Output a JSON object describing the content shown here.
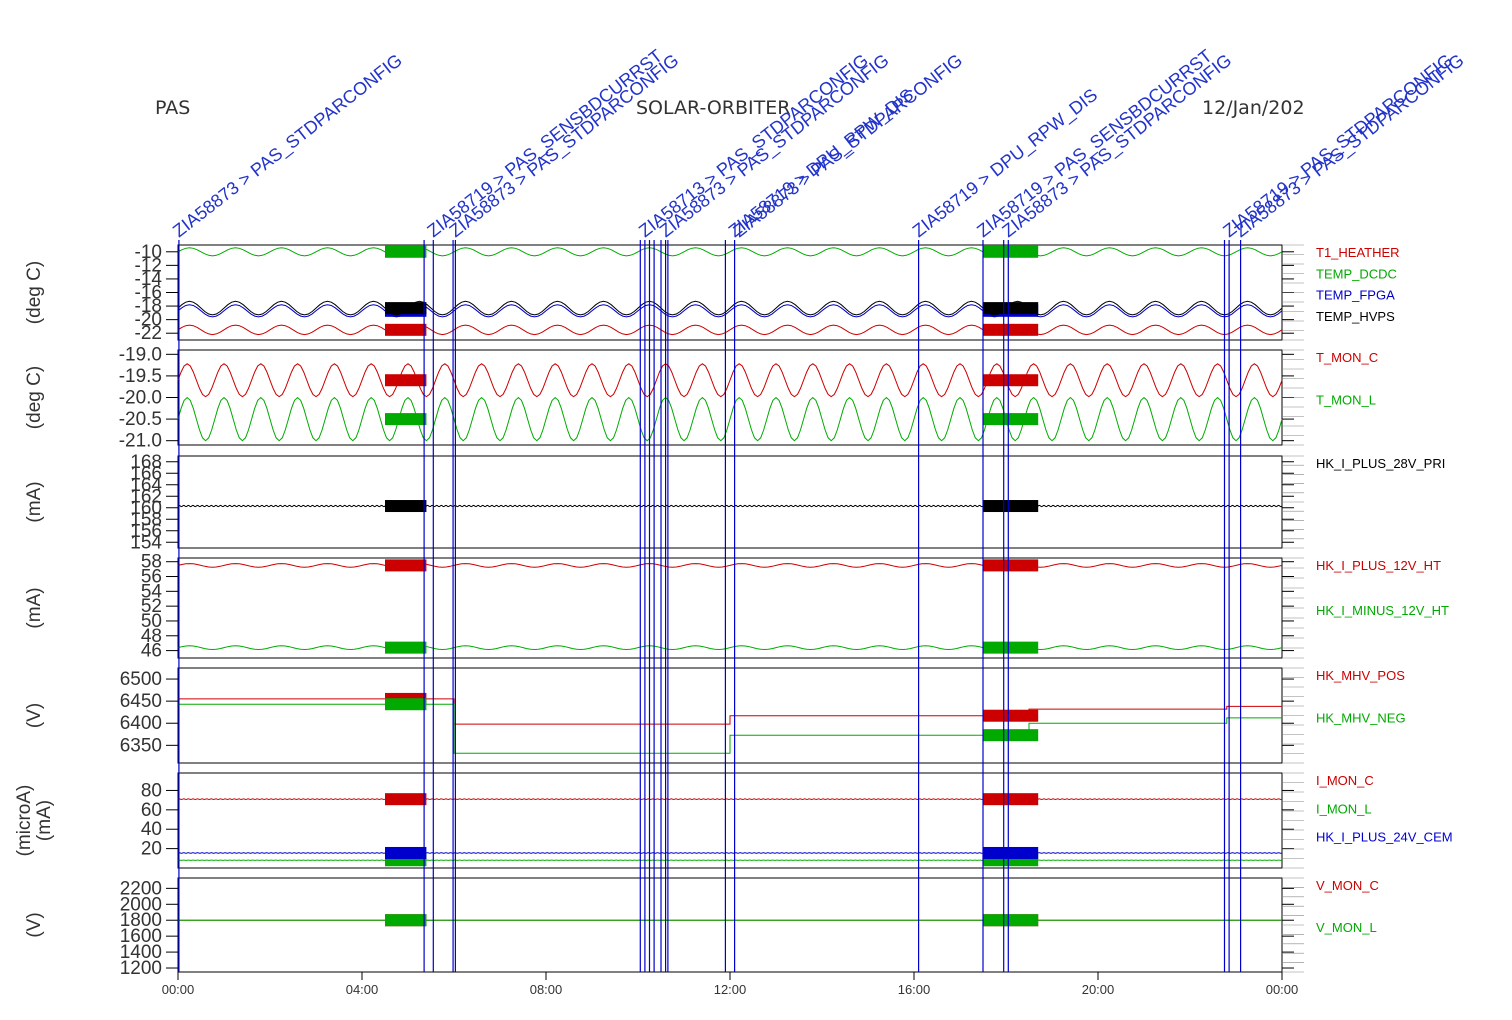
{
  "header": {
    "instrument": "PAS",
    "mission": "SOLAR-ORBITER",
    "date": "12/Jan/202"
  },
  "chart_data": [
    {
      "type": "line",
      "panel": "temperatures",
      "ylabel": "(deg C)",
      "yticks": [
        -10,
        -12,
        -14,
        -16,
        -18,
        -20,
        -22
      ],
      "ylim": [
        -23,
        -9
      ],
      "series": [
        {
          "name": "T1_HEATHER",
          "color": "#cc0000",
          "base": -21.5,
          "amp": 0.7,
          "period": 1
        },
        {
          "name": "TEMP_DCDC",
          "color": "#00aa00",
          "base": -10,
          "amp": 0.6,
          "period": 1
        },
        {
          "name": "TEMP_FPGA",
          "color": "#0000cc",
          "base": -18.7,
          "amp": 0.9,
          "period": 1
        },
        {
          "name": "TEMP_HVPS",
          "color": "#000000",
          "base": -18.3,
          "amp": 1.0,
          "period": 1
        }
      ]
    },
    {
      "type": "line",
      "panel": "monitor temperatures",
      "ylabel": "(deg C)",
      "yticks": [
        "-19.0",
        "-19.5",
        "-20.0",
        "-20.5",
        "-21.0"
      ],
      "ylim": [
        -21.1,
        -18.9
      ],
      "series": [
        {
          "name": "T_MON_C",
          "color": "#cc0000",
          "base": -19.6,
          "amp": 0.38,
          "period": 0.8
        },
        {
          "name": "T_MON_L",
          "color": "#00aa00",
          "base": -20.5,
          "amp": 0.5,
          "period": 0.8
        }
      ]
    },
    {
      "type": "line",
      "panel": "28V primary current",
      "ylabel": "(mA)",
      "yticks": [
        168,
        166,
        164,
        162,
        160,
        158,
        156,
        154
      ],
      "ylim": [
        153,
        169
      ],
      "series": [
        {
          "name": "HK_I_PLUS_28V_PRI",
          "color": "#000000",
          "base": 160.3,
          "amp": 0.1,
          "period": 0.1
        }
      ]
    },
    {
      "type": "line",
      "panel": "12V currents",
      "ylabel": "(mA)",
      "yticks": [
        58,
        56,
        54,
        52,
        50,
        48,
        46
      ],
      "ylim": [
        45,
        58.5
      ],
      "series": [
        {
          "name": "HK_I_PLUS_12V_HT",
          "color": "#cc0000",
          "base": 57.5,
          "amp": 0.25,
          "period": 1
        },
        {
          "name": "HK_I_MINUS_12V_HT",
          "color": "#00aa00",
          "base": 46.4,
          "amp": 0.25,
          "period": 1
        }
      ]
    },
    {
      "type": "line",
      "panel": "MHV",
      "ylabel": "(V)",
      "yticks": [
        6500,
        6450,
        6400,
        6350
      ],
      "ylim": [
        6310,
        6525
      ],
      "series": [
        {
          "name": "HK_MHV_POS",
          "color": "#cc0000",
          "steps": [
            [
              0,
              6455
            ],
            [
              6,
              6455
            ],
            [
              6,
              6398
            ],
            [
              12,
              6398
            ],
            [
              12,
              6417
            ],
            [
              18.5,
              6417
            ],
            [
              18.5,
              6432
            ],
            [
              22.8,
              6432
            ],
            [
              22.8,
              6438
            ],
            [
              24,
              6438
            ]
          ]
        },
        {
          "name": "HK_MHV_NEG",
          "color": "#00aa00",
          "steps": [
            [
              0,
              6443
            ],
            [
              6,
              6443
            ],
            [
              6,
              6332
            ],
            [
              12,
              6332
            ],
            [
              12,
              6373
            ],
            [
              18.5,
              6373
            ],
            [
              18.5,
              6400
            ],
            [
              22.8,
              6400
            ],
            [
              22.8,
              6412
            ],
            [
              24,
              6412
            ]
          ]
        }
      ]
    },
    {
      "type": "line",
      "panel": "monitor currents",
      "ylabel": "(microA)\n(mA)",
      "yticks": [
        80,
        60,
        40,
        20
      ],
      "ylim": [
        0,
        98
      ],
      "series": [
        {
          "name": "I_MON_C",
          "color": "#cc0000",
          "base": 71,
          "amp": 0.3,
          "period": 0.1
        },
        {
          "name": "I_MON_L",
          "color": "#00aa00",
          "base": 8,
          "amp": 0.2,
          "period": 0.1
        },
        {
          "name": "HK_I_PLUS_24V_CEM",
          "color": "#0000cc",
          "base": 15.5,
          "amp": 0.3,
          "period": 0.1
        }
      ]
    },
    {
      "type": "line",
      "panel": "monitor voltages",
      "ylabel": "(V)",
      "yticks": [
        2200,
        2000,
        1800,
        1600,
        1400,
        1200
      ],
      "ylim": [
        1150,
        2330
      ],
      "series": [
        {
          "name": "V_MON_C",
          "color": "#cc0000",
          "base": 1800,
          "amp": 0,
          "period": 1
        },
        {
          "name": "V_MON_L",
          "color": "#00aa00",
          "base": 1800,
          "amp": 0,
          "period": 1
        }
      ]
    }
  ],
  "x_axis": {
    "ticks": [
      "00:00",
      "04:00",
      "08:00",
      "12:00",
      "16:00",
      "20:00",
      "00:00"
    ],
    "range_hours": [
      0,
      24
    ]
  },
  "events": {
    "hours": [
      0.02,
      5.35,
      5.55,
      5.98,
      6.03,
      10.05,
      10.15,
      10.25,
      10.35,
      10.5,
      10.6,
      10.65,
      11.9,
      12.1,
      16.1,
      17.5,
      17.95,
      18.05,
      22.75,
      22.85,
      23.1
    ],
    "labels": [
      {
        "hour": 0.02,
        "text": "ZIA58873 > PAS_STDPARCONFIG"
      },
      {
        "hour": 5.55,
        "text": "ZIA58719 > PAS_SENSBDCURRST"
      },
      {
        "hour": 6.03,
        "text": "ZIA58873 > PAS_STDPARCONFIG"
      },
      {
        "hour": 10.15,
        "text": "ZIA58713 > PAS_STDPARCONFIG"
      },
      {
        "hour": 10.6,
        "text": "ZIA58873 > PAS_STDPARCONFIG"
      },
      {
        "hour": 12.1,
        "text": "ZIA58719 > DPU_RPW_DIS"
      },
      {
        "hour": 12.2,
        "text": "ZIA58873 > PAS_STDPARCONFIG"
      },
      {
        "hour": 16.1,
        "text": "ZIA58719 > DPU_RPW_DIS"
      },
      {
        "hour": 17.5,
        "text": "ZIA58719 > PAS_SENSBDCURRST"
      },
      {
        "hour": 18.05,
        "text": "ZIA58873 > PAS_STDPARCONFIG"
      },
      {
        "hour": 22.85,
        "text": "ZIA58719 > PAS_STDPARCONFIG"
      },
      {
        "hour": 23.1,
        "text": "ZIA58873 > PAS_STDPARCONFIG"
      }
    ]
  },
  "blocks_hours": [
    [
      4.5,
      5.4
    ],
    [
      17.5,
      18.7
    ]
  ]
}
